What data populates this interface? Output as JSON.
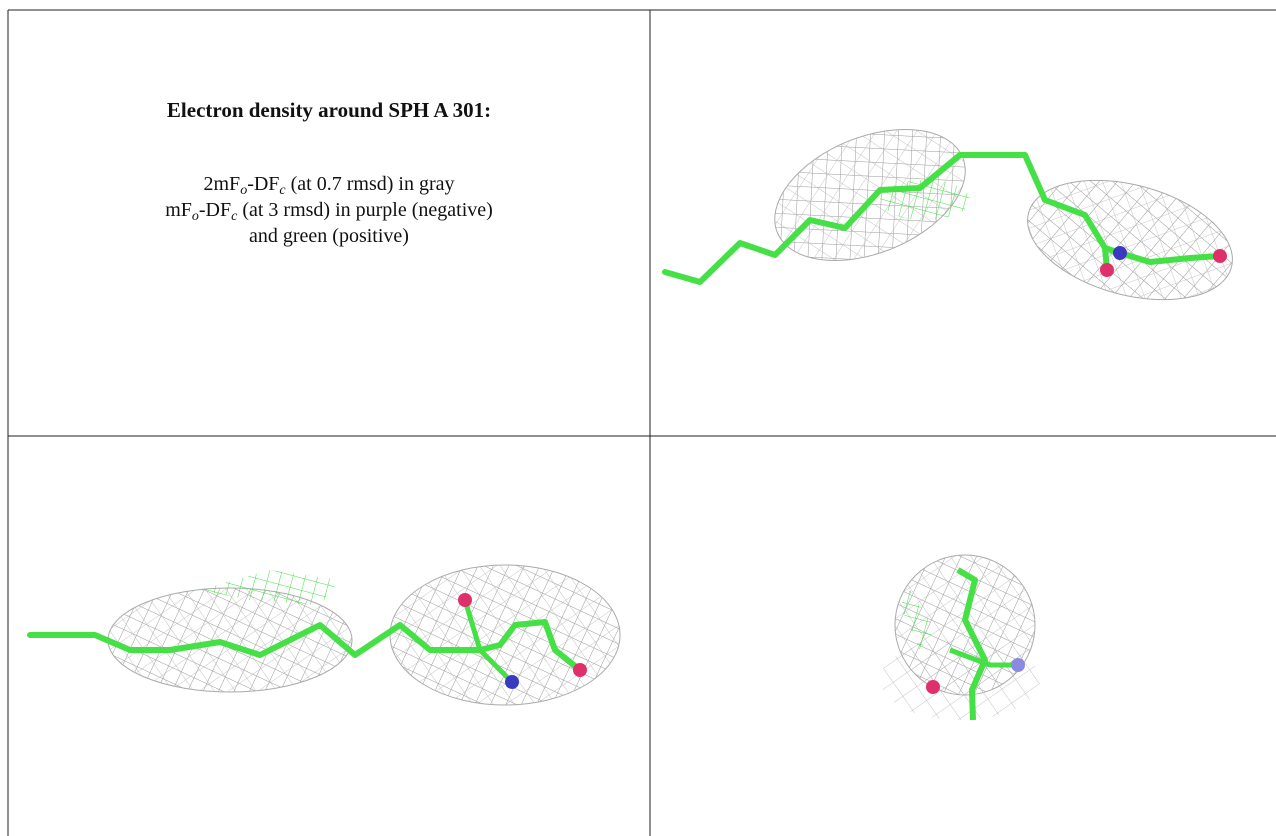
{
  "caption": {
    "title": "Electron density around SPH A 301:",
    "lines": [
      [
        "2mF",
        "o",
        "-DF",
        "c",
        " (at 0.7 rmsd) in gray"
      ],
      [
        "mF",
        "o",
        "-DF",
        "c",
        " (at 3 rmsd) in purple (negative)"
      ],
      [
        "and green (positive)"
      ]
    ]
  }
}
